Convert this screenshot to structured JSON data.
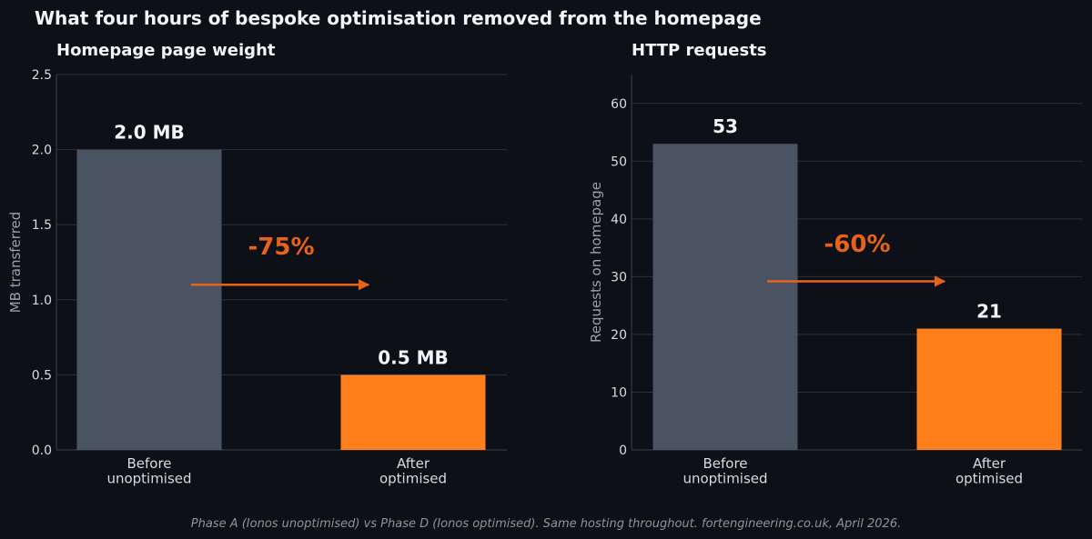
{
  "title": "What four hours of bespoke optimisation removed from the homepage",
  "caption": "Phase A (Ionos unoptimised) vs Phase D (Ionos optimised). Same hosting throughout. fortengineering.co.uk, April 2026.",
  "colors": {
    "before": "#4a5361",
    "after": "#ff7f1c",
    "arrow": "#e8621a",
    "background": "#0d1017"
  },
  "chart_data": [
    {
      "type": "bar",
      "title": "Homepage page weight",
      "ylabel": "MB transferred",
      "xlabel": "",
      "categories": [
        [
          "Before",
          "unoptimised"
        ],
        [
          "After",
          "optimised"
        ]
      ],
      "values": [
        2.0,
        0.5
      ],
      "value_labels": [
        "2.0 MB",
        "0.5 MB"
      ],
      "ylim": [
        0,
        2.5
      ],
      "yticks": [
        0.0,
        0.5,
        1.0,
        1.5,
        2.0,
        2.5
      ],
      "ytick_labels": [
        "0.0",
        "0.5",
        "1.0",
        "1.5",
        "2.0",
        "2.5"
      ],
      "annotation": {
        "text": "-75%",
        "arrow_y": 1.1
      },
      "grid": true
    },
    {
      "type": "bar",
      "title": "HTTP requests",
      "ylabel": "Requests on homepage",
      "xlabel": "",
      "categories": [
        [
          "Before",
          "unoptimised"
        ],
        [
          "After",
          "optimised"
        ]
      ],
      "values": [
        53,
        21
      ],
      "value_labels": [
        "53",
        "21"
      ],
      "ylim": [
        0,
        65
      ],
      "yticks": [
        0,
        10,
        20,
        30,
        40,
        50,
        60
      ],
      "ytick_labels": [
        "0",
        "10",
        "20",
        "30",
        "40",
        "50",
        "60"
      ],
      "annotation": {
        "text": "-60%",
        "arrow_y": 29.2
      },
      "grid": true
    }
  ]
}
